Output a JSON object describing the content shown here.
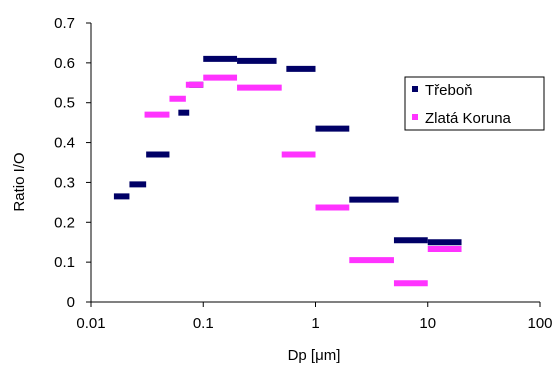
{
  "chart_data": {
    "type": "scatter",
    "title": "",
    "xlabel": "Dp [μm]",
    "ylabel": "Ratio I/O",
    "x_scale": "log",
    "xlim": [
      0.01,
      100
    ],
    "ylim": [
      0,
      0.7
    ],
    "x_ticks": [
      0.01,
      0.1,
      1,
      10,
      100
    ],
    "x_tick_labels": [
      "0.01",
      "0.1",
      "1",
      "10",
      "100"
    ],
    "y_ticks": [
      0,
      0.1,
      0.2,
      0.3,
      0.4,
      0.5,
      0.6,
      0.7
    ],
    "y_tick_labels": [
      "0",
      "0.1",
      "0.2",
      "0.3",
      "0.4",
      "0.5",
      "0.6",
      "0.7"
    ],
    "grid": false,
    "legend_position": "right",
    "series": [
      {
        "name": "Třeboň",
        "color": "#000066",
        "segments": [
          {
            "x_start": 0.016,
            "x_end": 0.022,
            "y": 0.265
          },
          {
            "x_start": 0.022,
            "x_end": 0.031,
            "y": 0.295
          },
          {
            "x_start": 0.031,
            "x_end": 0.05,
            "y": 0.37
          },
          {
            "x_start": 0.06,
            "x_end": 0.075,
            "y": 0.475
          },
          {
            "x_start": 0.075,
            "x_end": 0.1,
            "y": 0.545
          },
          {
            "x_start": 0.1,
            "x_end": 0.2,
            "y": 0.61
          },
          {
            "x_start": 0.2,
            "x_end": 0.45,
            "y": 0.605
          },
          {
            "x_start": 0.55,
            "x_end": 1.0,
            "y": 0.585
          },
          {
            "x_start": 1.0,
            "x_end": 2.0,
            "y": 0.435
          },
          {
            "x_start": 2.0,
            "x_end": 5.5,
            "y": 0.257
          },
          {
            "x_start": 5.0,
            "x_end": 10.0,
            "y": 0.155
          },
          {
            "x_start": 10.0,
            "x_end": 20.0,
            "y": 0.15
          }
        ]
      },
      {
        "name": "Zlatá Koruna",
        "color": "#ff33ff",
        "segments": [
          {
            "x_start": 0.03,
            "x_end": 0.05,
            "y": 0.47
          },
          {
            "x_start": 0.05,
            "x_end": 0.07,
            "y": 0.51
          },
          {
            "x_start": 0.07,
            "x_end": 0.1,
            "y": 0.545
          },
          {
            "x_start": 0.1,
            "x_end": 0.2,
            "y": 0.563
          },
          {
            "x_start": 0.2,
            "x_end": 0.5,
            "y": 0.538
          },
          {
            "x_start": 0.5,
            "x_end": 1.0,
            "y": 0.37
          },
          {
            "x_start": 1.0,
            "x_end": 2.0,
            "y": 0.237
          },
          {
            "x_start": 2.0,
            "x_end": 5.0,
            "y": 0.105
          },
          {
            "x_start": 5.0,
            "x_end": 10.0,
            "y": 0.047
          },
          {
            "x_start": 10.0,
            "x_end": 20.0,
            "y": 0.133
          }
        ]
      }
    ]
  }
}
